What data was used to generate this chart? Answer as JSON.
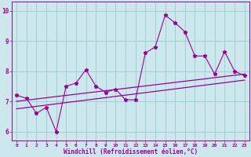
{
  "x_values": [
    0,
    1,
    2,
    3,
    4,
    5,
    6,
    7,
    8,
    9,
    10,
    11,
    12,
    13,
    14,
    15,
    16,
    17,
    18,
    19,
    20,
    21,
    22,
    23
  ],
  "y_values": [
    7.2,
    7.1,
    6.6,
    6.8,
    6.0,
    7.5,
    7.6,
    8.05,
    7.5,
    7.3,
    7.4,
    7.05,
    7.05,
    8.6,
    8.8,
    9.85,
    9.6,
    9.3,
    8.5,
    8.5,
    7.9,
    8.65,
    8.0,
    7.85
  ],
  "trend1_start": 7.0,
  "trend1_end": 7.9,
  "trend2_start": 6.75,
  "trend2_end": 7.7,
  "line_color": "#990099",
  "marker": "*",
  "marker_size": 3.5,
  "xlabel": "Windchill (Refroidissement éolien,°C)",
  "xlim": [
    -0.5,
    23.5
  ],
  "ylim": [
    5.7,
    10.3
  ],
  "yticks": [
    6,
    7,
    8,
    9,
    10
  ],
  "xticks": [
    0,
    1,
    2,
    3,
    4,
    5,
    6,
    7,
    8,
    9,
    10,
    11,
    12,
    13,
    14,
    15,
    16,
    17,
    18,
    19,
    20,
    21,
    22,
    23
  ],
  "bg_color": "#cce8ec",
  "grid_color": "#99cccc",
  "fig_width": 3.2,
  "fig_height": 2.0,
  "dpi": 100
}
